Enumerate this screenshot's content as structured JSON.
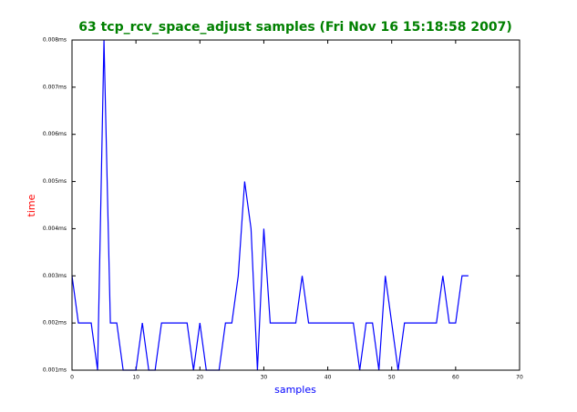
{
  "chart_data": {
    "type": "line",
    "title": "63 tcp_rcv_space_adjust samples (Fri Nov 16 15:18:58 2007)",
    "xlabel": "samples",
    "ylabel": "time",
    "x": [
      0,
      1,
      2,
      3,
      4,
      5,
      6,
      7,
      8,
      9,
      10,
      11,
      12,
      13,
      14,
      15,
      16,
      17,
      18,
      19,
      20,
      21,
      22,
      23,
      24,
      25,
      26,
      27,
      28,
      29,
      30,
      31,
      32,
      33,
      34,
      35,
      36,
      37,
      38,
      39,
      40,
      41,
      42,
      43,
      44,
      45,
      46,
      47,
      48,
      49,
      50,
      51,
      52,
      53,
      54,
      55,
      56,
      57,
      58,
      59,
      60,
      61,
      62
    ],
    "series": [
      {
        "name": "time",
        "color": "#0000ff",
        "values": [
          0.003,
          0.002,
          0.002,
          0.002,
          0.001,
          0.008,
          0.002,
          0.002,
          0.001,
          0.001,
          0.001,
          0.002,
          0.001,
          0.001,
          0.002,
          0.002,
          0.002,
          0.002,
          0.002,
          0.001,
          0.002,
          0.001,
          0.001,
          0.001,
          0.002,
          0.002,
          0.003,
          0.005,
          0.004,
          0.001,
          0.004,
          0.002,
          0.002,
          0.002,
          0.002,
          0.002,
          0.003,
          0.002,
          0.002,
          0.002,
          0.002,
          0.002,
          0.002,
          0.002,
          0.002,
          0.001,
          0.002,
          0.002,
          0.001,
          0.003,
          0.002,
          0.001,
          0.002,
          0.002,
          0.002,
          0.002,
          0.002,
          0.002,
          0.003,
          0.002,
          0.002,
          0.003,
          0.003
        ]
      }
    ],
    "xlim": [
      0,
      70
    ],
    "xticks": [
      0,
      10,
      20,
      30,
      40,
      50,
      60,
      70
    ],
    "ylim": [
      0.001,
      0.008
    ],
    "yticks": [
      {
        "value": 0.001,
        "label": "0.001ms"
      },
      {
        "value": 0.002,
        "label": "0.002ms"
      },
      {
        "value": 0.003,
        "label": "0.003ms"
      },
      {
        "value": 0.004,
        "label": "0.004ms"
      },
      {
        "value": 0.005,
        "label": "0.005ms"
      },
      {
        "value": 0.006,
        "label": "0.006ms"
      },
      {
        "value": 0.007,
        "label": "0.007ms"
      },
      {
        "value": 0.008,
        "label": "0.008ms"
      }
    ],
    "title_color": "#008000",
    "xlabel_color": "#0000ff",
    "ylabel_color": "#ff0000"
  }
}
